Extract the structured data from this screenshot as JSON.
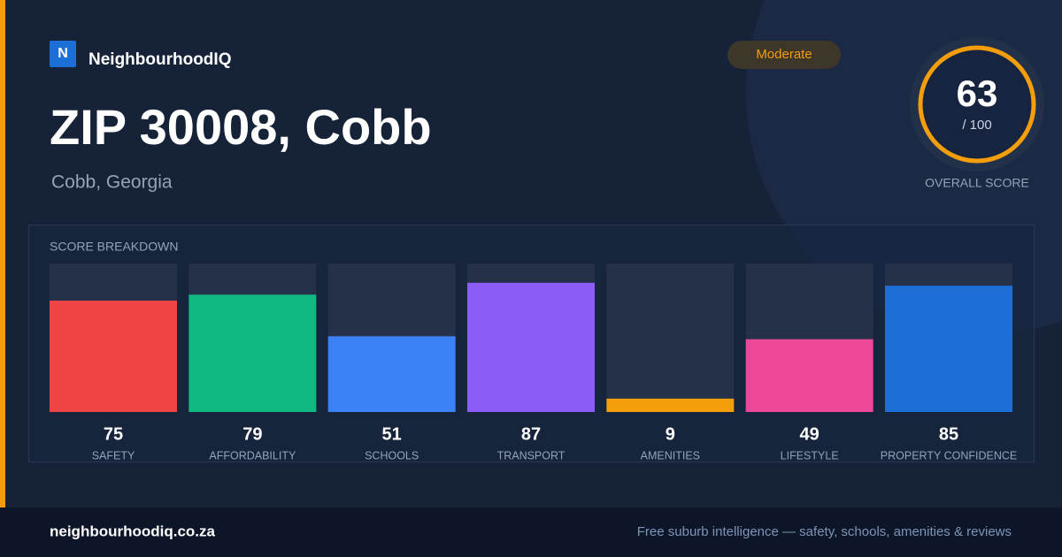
{
  "header": {
    "logo": "N",
    "brand": "NeighbourhoodIQ",
    "badge": "Moderate",
    "title": "ZIP 30008, Cobb",
    "subtitle": "Cobb, Georgia"
  },
  "score": {
    "value": 63,
    "max": 100,
    "max_label": "/ 100",
    "caption": "OVERALL SCORE"
  },
  "breakdown": {
    "title": "SCORE BREAKDOWN",
    "categories": [
      "SAFETY",
      "AFFORDABILITY",
      "SCHOOLS",
      "TRANSPORT",
      "AMENITIES",
      "LIFESTYLE",
      "PROPERTY CONFIDENCE"
    ],
    "values": [
      75,
      79,
      51,
      87,
      9,
      49,
      85
    ],
    "colors": [
      "#ef4444",
      "#10b981",
      "#3b82f6",
      "#8b5cf6",
      "#f59e0b",
      "#ec4899",
      "#1d6fd8"
    ]
  },
  "footer": {
    "site": "neighbourhoodiq.co.za",
    "tagline": "Free suburb intelligence — safety, schools, amenities & reviews"
  }
}
